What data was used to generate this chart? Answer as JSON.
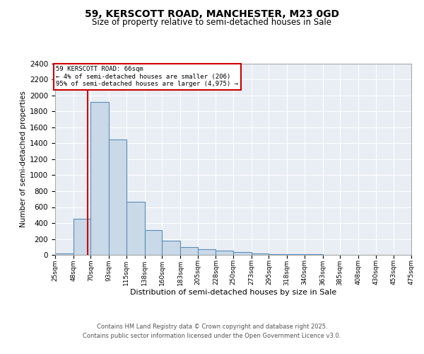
{
  "title1": "59, KERSCOTT ROAD, MANCHESTER, M23 0GD",
  "title2": "Size of property relative to semi-detached houses in Sale",
  "xlabel": "Distribution of semi-detached houses by size in Sale",
  "ylabel": "Number of semi-detached properties",
  "bin_labels": [
    "25sqm",
    "48sqm",
    "70sqm",
    "93sqm",
    "115sqm",
    "138sqm",
    "160sqm",
    "183sqm",
    "205sqm",
    "228sqm",
    "250sqm",
    "273sqm",
    "295sqm",
    "318sqm",
    "340sqm",
    "363sqm",
    "385sqm",
    "408sqm",
    "430sqm",
    "453sqm",
    "475sqm"
  ],
  "bin_edges": [
    25,
    48,
    70,
    93,
    115,
    138,
    160,
    183,
    205,
    228,
    250,
    273,
    295,
    318,
    340,
    363,
    385,
    408,
    430,
    453,
    475
  ],
  "bar_heights": [
    20,
    450,
    1920,
    1450,
    670,
    310,
    175,
    100,
    70,
    55,
    35,
    20,
    10,
    10,
    5,
    2,
    2,
    1,
    0,
    0
  ],
  "bar_color": "#c9d9e8",
  "bar_edge_color": "#5b8db8",
  "property_size": 66,
  "red_line_color": "#cc0000",
  "annotation_line1": "59 KERSCOTT ROAD: 66sqm",
  "annotation_line2": "← 4% of semi-detached houses are smaller (206)",
  "annotation_line3": "95% of semi-detached houses are larger (4,975) →",
  "annotation_box_edgecolor": "#cc0000",
  "ylim": [
    0,
    2400
  ],
  "yticks": [
    0,
    200,
    400,
    600,
    800,
    1000,
    1200,
    1400,
    1600,
    1800,
    2000,
    2200,
    2400
  ],
  "plot_bg_color": "#e8eef4",
  "grid_color": "white",
  "footer_line1": "Contains HM Land Registry data © Crown copyright and database right 2025.",
  "footer_line2": "Contains public sector information licensed under the Open Government Licence v3.0."
}
